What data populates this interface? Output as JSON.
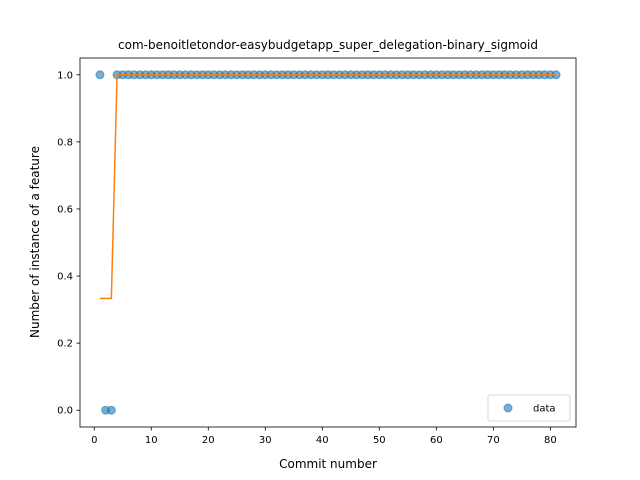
{
  "chart_data": {
    "type": "scatter",
    "title": "com-benoitletondor-easybudgetapp_super_delegation-binary_sigmoid",
    "xlabel": "Commit number",
    "ylabel": "Number of instance of a feature",
    "xlim": [
      -2.5,
      84.5
    ],
    "ylim": [
      -0.05,
      1.05
    ],
    "xticks": [
      0,
      10,
      20,
      30,
      40,
      50,
      60,
      70,
      80
    ],
    "yticks": [
      0.0,
      0.2,
      0.4,
      0.6,
      0.8,
      1.0
    ],
    "xtick_labels": [
      "0",
      "10",
      "20",
      "30",
      "40",
      "50",
      "60",
      "70",
      "80"
    ],
    "ytick_labels": [
      "0.0",
      "0.2",
      "0.4",
      "0.6",
      "0.8",
      "1.0"
    ],
    "legend_position": "lower-right",
    "series": [
      {
        "name": "data",
        "kind": "scatter",
        "color": "#1f77b4",
        "x": [
          1,
          2,
          3,
          4,
          5,
          6,
          7,
          8,
          9,
          10,
          11,
          12,
          13,
          14,
          15,
          16,
          17,
          18,
          19,
          20,
          21,
          22,
          23,
          24,
          25,
          26,
          27,
          28,
          29,
          30,
          31,
          32,
          33,
          34,
          35,
          36,
          37,
          38,
          39,
          40,
          41,
          42,
          43,
          44,
          45,
          46,
          47,
          48,
          49,
          50,
          51,
          52,
          53,
          54,
          55,
          56,
          57,
          58,
          59,
          60,
          61,
          62,
          63,
          64,
          65,
          66,
          67,
          68,
          69,
          70,
          71,
          72,
          73,
          74,
          75,
          76,
          77,
          78,
          79,
          80,
          81
        ],
        "y": [
          1,
          0,
          0,
          1,
          1,
          1,
          1,
          1,
          1,
          1,
          1,
          1,
          1,
          1,
          1,
          1,
          1,
          1,
          1,
          1,
          1,
          1,
          1,
          1,
          1,
          1,
          1,
          1,
          1,
          1,
          1,
          1,
          1,
          1,
          1,
          1,
          1,
          1,
          1,
          1,
          1,
          1,
          1,
          1,
          1,
          1,
          1,
          1,
          1,
          1,
          1,
          1,
          1,
          1,
          1,
          1,
          1,
          1,
          1,
          1,
          1,
          1,
          1,
          1,
          1,
          1,
          1,
          1,
          1,
          1,
          1,
          1,
          1,
          1,
          1,
          1,
          1,
          1,
          1,
          1,
          1
        ]
      },
      {
        "kind": "line",
        "color": "#ff7f0e",
        "x": [
          1,
          3,
          4,
          81
        ],
        "y": [
          0.3333,
          0.3333,
          1.0,
          1.0
        ]
      }
    ]
  }
}
